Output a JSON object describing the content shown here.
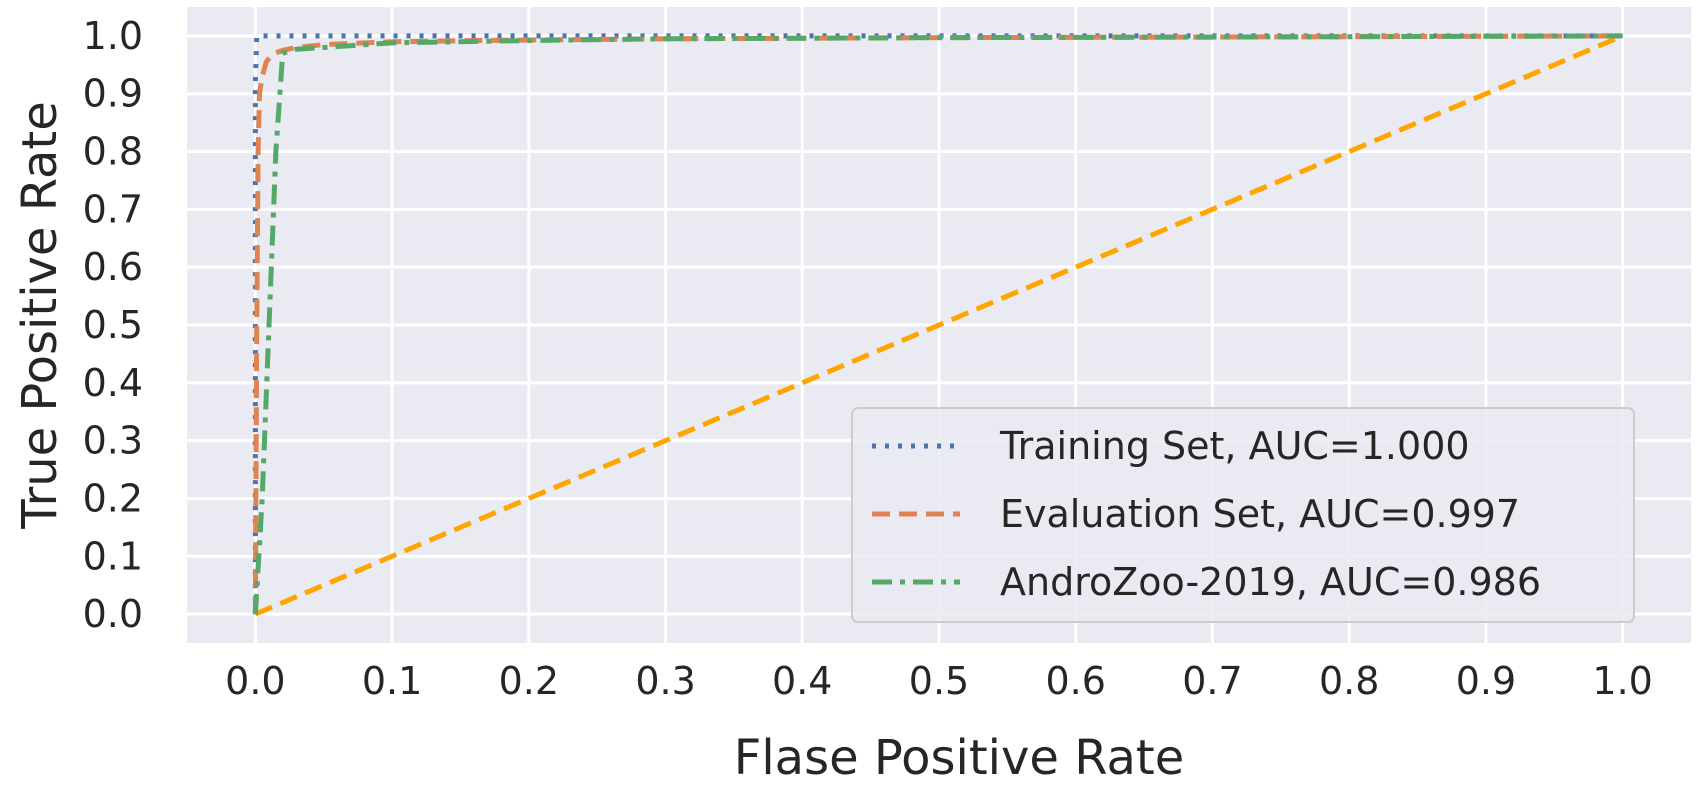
{
  "chart_data": {
    "type": "line",
    "title": "",
    "xlabel": "Flase Positive Rate",
    "ylabel": "True Positive Rate",
    "xlim": [
      -0.05,
      1.05
    ],
    "ylim": [
      -0.05,
      1.05
    ],
    "xticks": [
      0.0,
      0.1,
      0.2,
      0.3,
      0.4,
      0.5,
      0.6,
      0.7,
      0.8,
      0.9,
      1.0
    ],
    "yticks": [
      0.0,
      0.1,
      0.2,
      0.3,
      0.4,
      0.5,
      0.6,
      0.7,
      0.8,
      0.9,
      1.0
    ],
    "xtick_labels": [
      "0.0",
      "0.1",
      "0.2",
      "0.3",
      "0.4",
      "0.5",
      "0.6",
      "0.7",
      "0.8",
      "0.9",
      "1.0"
    ],
    "ytick_labels": [
      "0.0",
      "0.1",
      "0.2",
      "0.3",
      "0.4",
      "0.5",
      "0.6",
      "0.7",
      "0.8",
      "0.9",
      "1.0"
    ],
    "grid": true,
    "legend_position": "lower-right",
    "background_color": "#eaeaf2",
    "grid_color": "#ffffff",
    "series": [
      {
        "name": "Training Set, AUC=1.000",
        "style": "dotted",
        "color": "#4c72b0",
        "x": [
          0.0,
          0.0,
          0.001,
          1.0
        ],
        "y": [
          0.0,
          0.92,
          1.0,
          1.0
        ]
      },
      {
        "name": "Evaluation Set, AUC=0.997",
        "style": "dashed",
        "color": "#dd8452",
        "x": [
          0.0,
          0.001,
          0.002,
          0.003,
          0.005,
          0.008,
          0.012,
          0.02,
          0.03,
          0.05,
          0.1,
          0.2,
          0.3,
          0.5,
          0.7,
          1.0
        ],
        "y": [
          0.0,
          0.5,
          0.8,
          0.9,
          0.93,
          0.955,
          0.968,
          0.975,
          0.98,
          0.985,
          0.99,
          0.993,
          0.995,
          0.997,
          0.998,
          1.0
        ]
      },
      {
        "name": "AndroZoo-2019, AUC=0.986",
        "style": "dashdot",
        "color": "#55a868",
        "x": [
          0.0,
          0.005,
          0.01,
          0.015,
          0.02,
          0.03,
          0.05,
          0.1,
          0.2,
          0.3,
          0.5,
          0.7,
          1.0
        ],
        "y": [
          0.0,
          0.2,
          0.5,
          0.8,
          0.97,
          0.977,
          0.98,
          0.988,
          0.992,
          0.995,
          0.997,
          0.998,
          1.0
        ]
      },
      {
        "name": "",
        "style": "dashed",
        "color": "#ffa500",
        "x": [
          0.0,
          1.0
        ],
        "y": [
          0.0,
          1.0
        ]
      }
    ]
  }
}
